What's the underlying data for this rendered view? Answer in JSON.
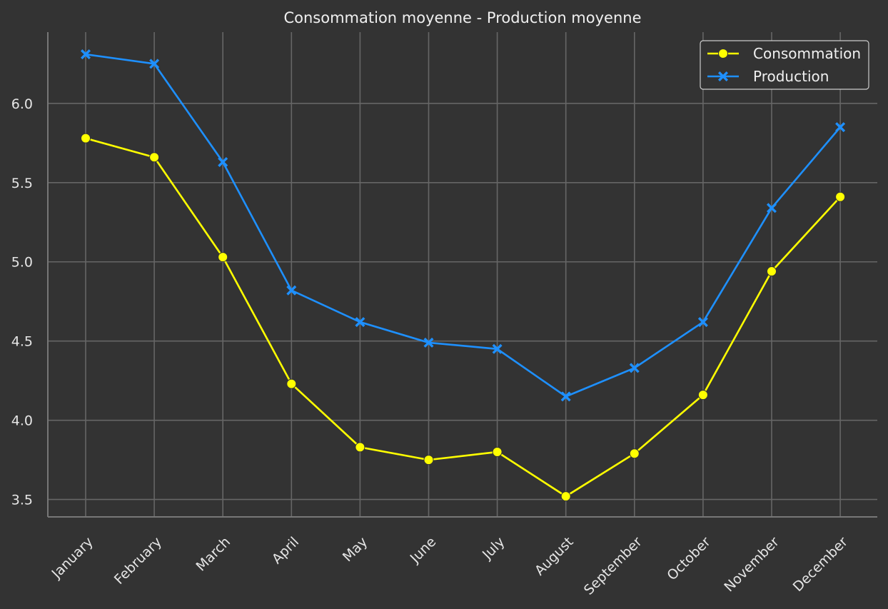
{
  "chart_data": {
    "type": "line",
    "title": "Consommation moyenne - Production moyenne",
    "xlabel": "",
    "ylabel": "",
    "categories": [
      "January",
      "February",
      "March",
      "April",
      "May",
      "June",
      "July",
      "August",
      "September",
      "October",
      "November",
      "December"
    ],
    "series": [
      {
        "name": "Consommation",
        "color": "#ffff00",
        "marker": "circle",
        "values": [
          5.78,
          5.66,
          5.03,
          4.23,
          3.83,
          3.75,
          3.8,
          3.52,
          3.79,
          4.16,
          4.94,
          5.41
        ]
      },
      {
        "name": "Production",
        "color": "#1e90ff",
        "marker": "x",
        "values": [
          6.31,
          6.25,
          5.63,
          4.82,
          4.62,
          4.49,
          4.45,
          4.15,
          4.33,
          4.62,
          5.34,
          5.85
        ]
      }
    ],
    "yticks": [
      "3.5",
      "4.0",
      "4.5",
      "5.0",
      "5.5",
      "6.0"
    ],
    "ylim": [
      3.39,
      6.45
    ],
    "grid": true,
    "legend_position": "top-right",
    "colors": {
      "background": "#333333",
      "grid": "#666666",
      "axis": "#777777",
      "text": "#e6e6e6"
    }
  }
}
